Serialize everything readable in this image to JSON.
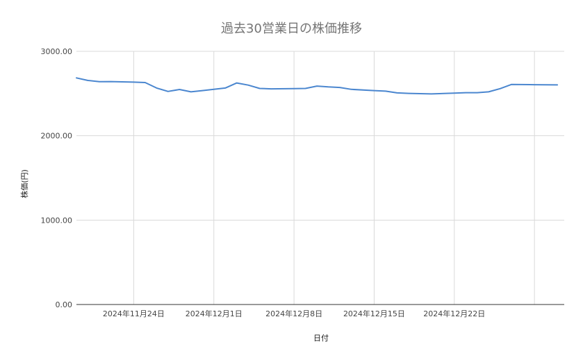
{
  "chart_data": {
    "type": "line",
    "title": "過去30営業日の株価推移",
    "xlabel": "日付",
    "ylabel": "株価(円)",
    "ylim": [
      0,
      3000
    ],
    "y_ticks": [
      "0.00",
      "1000.00",
      "2000.00",
      "3000.00"
    ],
    "x_range": [
      "2024-11-19",
      "2024-12-31"
    ],
    "x_ticks": [
      {
        "date": "2024-11-24",
        "label": "2024年11月24日"
      },
      {
        "date": "2024-12-01",
        "label": "2024年12月1日"
      },
      {
        "date": "2024-12-08",
        "label": "2024年12月8日"
      },
      {
        "date": "2024-12-15",
        "label": "2024年12月15日"
      },
      {
        "date": "2024-12-22",
        "label": "2024年12月22日"
      },
      {
        "date": "2024-12-29",
        "label": ""
      }
    ],
    "grid": true,
    "legend": "none",
    "series": [
      {
        "color": "#4a86cf",
        "points": [
          {
            "x": "2024-11-19",
            "y": 2685
          },
          {
            "x": "2024-11-20",
            "y": 2655
          },
          {
            "x": "2024-11-21",
            "y": 2640
          },
          {
            "x": "2024-11-22",
            "y": 2642
          },
          {
            "x": "2024-11-23",
            "y": 2638
          },
          {
            "x": "2024-11-24",
            "y": 2635
          },
          {
            "x": "2024-11-25",
            "y": 2630
          },
          {
            "x": "2024-11-26",
            "y": 2565
          },
          {
            "x": "2024-11-27",
            "y": 2525
          },
          {
            "x": "2024-11-28",
            "y": 2548
          },
          {
            "x": "2024-11-29",
            "y": 2520
          },
          {
            "x": "2024-11-30",
            "y": 2535
          },
          {
            "x": "2024-12-01",
            "y": 2550
          },
          {
            "x": "2024-12-02",
            "y": 2565
          },
          {
            "x": "2024-12-03",
            "y": 2625
          },
          {
            "x": "2024-12-04",
            "y": 2600
          },
          {
            "x": "2024-12-05",
            "y": 2560
          },
          {
            "x": "2024-12-06",
            "y": 2555
          },
          {
            "x": "2024-12-08",
            "y": 2558
          },
          {
            "x": "2024-12-09",
            "y": 2560
          },
          {
            "x": "2024-12-10",
            "y": 2588
          },
          {
            "x": "2024-12-11",
            "y": 2578
          },
          {
            "x": "2024-12-12",
            "y": 2572
          },
          {
            "x": "2024-12-13",
            "y": 2550
          },
          {
            "x": "2024-12-15",
            "y": 2535
          },
          {
            "x": "2024-12-16",
            "y": 2528
          },
          {
            "x": "2024-12-17",
            "y": 2508
          },
          {
            "x": "2024-12-18",
            "y": 2502
          },
          {
            "x": "2024-12-20",
            "y": 2495
          },
          {
            "x": "2024-12-22",
            "y": 2505
          },
          {
            "x": "2024-12-23",
            "y": 2510
          },
          {
            "x": "2024-12-24",
            "y": 2510
          },
          {
            "x": "2024-12-25",
            "y": 2520
          },
          {
            "x": "2024-12-26",
            "y": 2558
          },
          {
            "x": "2024-12-27",
            "y": 2608
          },
          {
            "x": "2024-12-29",
            "y": 2605
          },
          {
            "x": "2024-12-31",
            "y": 2602
          }
        ]
      }
    ]
  }
}
